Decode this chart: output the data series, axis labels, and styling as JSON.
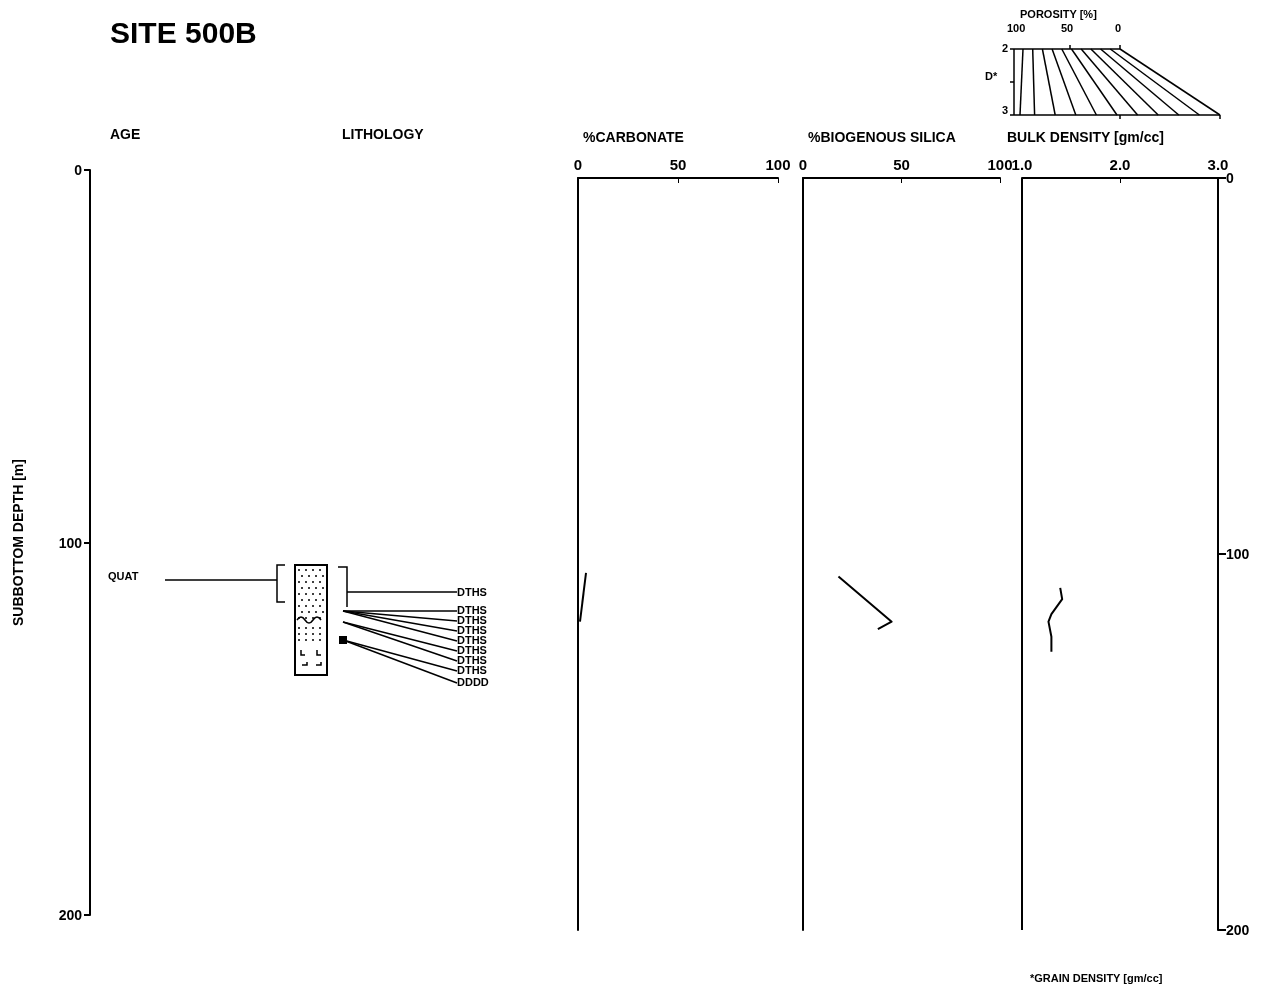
{
  "chart_data": [
    {
      "type": "other",
      "title": "SITE 500B",
      "ylabel": "SUBBOTTOM DEPTH [m]",
      "annotations": [
        "AGE",
        "LITHOLOGY",
        "QUAT",
        "DTHS",
        "DTHS",
        "DTHS",
        "DTHS",
        "DTHS",
        "DTHS",
        "DTHS",
        "DTHS",
        "DDDD",
        "0",
        "100",
        "200"
      ]
    },
    {
      "type": "line",
      "title": "%CARBONATE",
      "xlim": [
        0,
        100
      ],
      "xticks": [
        0,
        50,
        100
      ],
      "ylim": [
        200,
        0
      ],
      "tick_labels": "x",
      "marker": "none",
      "series": [
        {
          "color": "#000000",
          "x": [
            4,
            1
          ],
          "values": [
            105,
            118
          ]
        }
      ]
    },
    {
      "type": "line",
      "title": "%BIOGENOUS SILICA",
      "xlim": [
        0,
        100
      ],
      "xticks": [
        0,
        50,
        100
      ],
      "ylim": [
        200,
        0
      ],
      "tick_labels": "x",
      "marker": "none",
      "series": [
        {
          "color": "#000000",
          "x": [
            18,
            45,
            38
          ],
          "values": [
            106,
            118,
            120
          ]
        }
      ]
    },
    {
      "type": "line",
      "title": "BULK DENSITY [gm/cc]",
      "xlim": [
        1.0,
        3.0
      ],
      "xticks": [
        {
          "value": 1,
          "label": "1.0"
        },
        {
          "value": 2,
          "label": "2.0"
        },
        {
          "value": 3,
          "label": "3.0"
        }
      ],
      "ylim": [
        200,
        0
      ],
      "yticks": [
        0,
        100,
        200
      ],
      "marker": "none",
      "series": [
        {
          "color": "#000000",
          "x": [
            1.39,
            1.41,
            1.3,
            1.27,
            1.3,
            1.3
          ],
          "values": [
            109,
            112,
            116,
            118,
            122,
            126
          ]
        }
      ]
    },
    {
      "type": "other",
      "annotations": [
        "POROSITY [%]",
        "100",
        "50",
        "0",
        "D*",
        "2",
        "3",
        "*GRAIN DENSITY [gm/cc]"
      ]
    }
  ]
}
